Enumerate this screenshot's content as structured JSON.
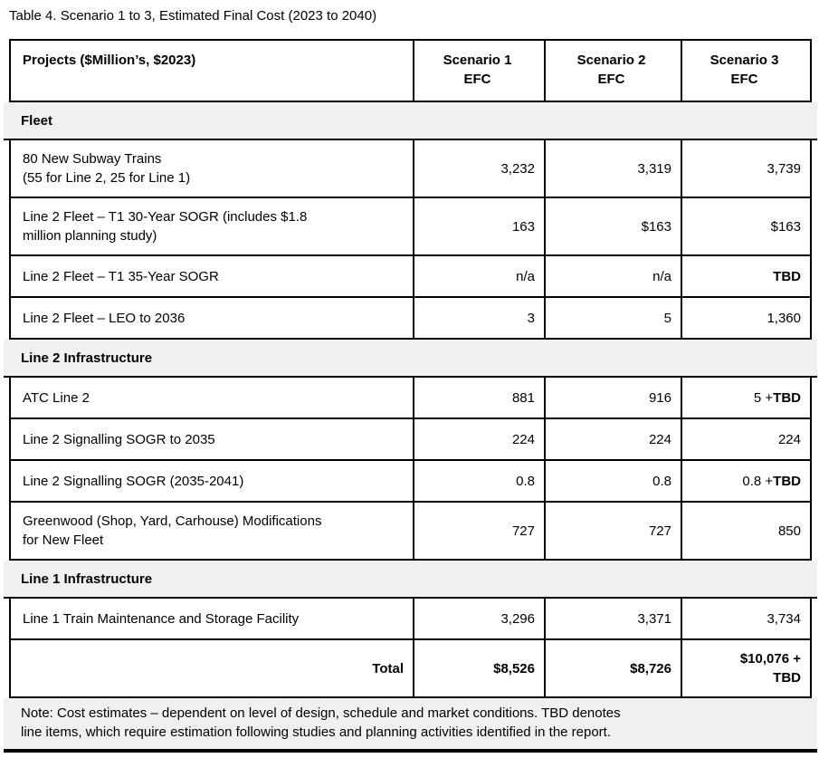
{
  "page": {
    "title": "Table 4. Scenario 1 to 3, Estimated Final Cost (2023 to 2040)"
  },
  "table": {
    "header": {
      "projects": "Projects ($Million’s, $2023)",
      "scenario1": "Scenario 1\nEFC",
      "scenario2": "Scenario 2\nEFC",
      "scenario3": "Scenario 3\nEFC"
    },
    "rows": [
      {
        "type": "section",
        "label": "Fleet"
      },
      {
        "type": "data",
        "project": "80 New Subway Trains\n(55 for Line 2, 25 for Line 1)",
        "values": [
          "3,232",
          "3,319",
          "3,739"
        ]
      },
      {
        "type": "data",
        "project": "Line 2 Fleet – T1 30-Year SOGR (includes $1.8\nmillion planning study)",
        "values": [
          "163",
          "$163",
          "$163"
        ]
      },
      {
        "type": "data",
        "project": "Line 2 Fleet – T1 35-Year SOGR",
        "values": [
          "n/a",
          "n/a",
          "**TBD**"
        ]
      },
      {
        "type": "data",
        "project": "Line 2 Fleet – LEO to 2036",
        "values": [
          "3",
          "5",
          "1,360"
        ]
      },
      {
        "type": "section",
        "label": "Line 2 Infrastructure"
      },
      {
        "type": "data",
        "project": "ATC Line 2",
        "values": [
          "881",
          "916",
          "5 + **TBD**"
        ]
      },
      {
        "type": "data",
        "project": "Line 2 Signalling SOGR to 2035",
        "values": [
          "224",
          "224",
          "224"
        ]
      },
      {
        "type": "data",
        "project": "Line 2 Signalling SOGR (2035-2041)",
        "values": [
          "0.8",
          "0.8",
          "0.8 + **TBD**"
        ]
      },
      {
        "type": "data",
        "project": "Greenwood (Shop, Yard, Carhouse) Modifications\nfor New Fleet",
        "values": [
          "727",
          "727",
          "850"
        ]
      },
      {
        "type": "section",
        "label": "Line 1 Infrastructure"
      },
      {
        "type": "data",
        "project": "Line 1 Train Maintenance and Storage Facility",
        "values": [
          "3,296",
          "3,371",
          "3,734"
        ]
      },
      {
        "type": "total",
        "project": "Total",
        "values": [
          "$8,526",
          "$8,726",
          "$10,076 +\nTBD"
        ]
      }
    ],
    "note": "Note: Cost estimates – dependent on level of design, schedule and market conditions. TBD denotes\nline items, which require estimation following studies and planning activities identified in the report."
  },
  "colors": {
    "section_band_bg": "#f0f0f0",
    "note_band_bg": "#f0f0f0",
    "border": "#000000",
    "text": "#000000",
    "page_bg": "#ffffff"
  }
}
